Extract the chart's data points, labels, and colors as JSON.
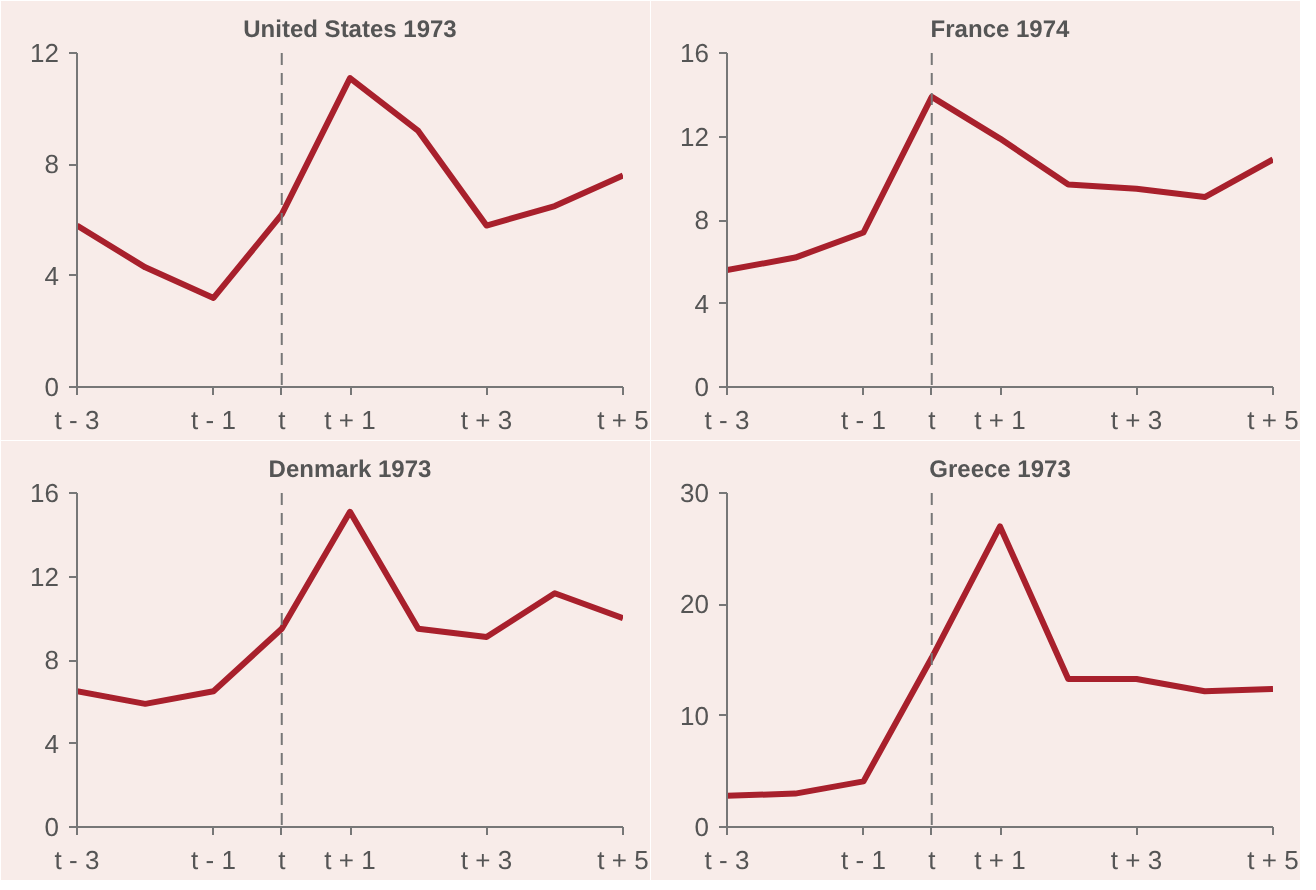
{
  "chart_data": [
    {
      "type": "line",
      "title": "United States 1973",
      "x": [
        -3,
        -2,
        -1,
        0,
        1,
        2,
        3,
        4,
        5
      ],
      "series": [
        {
          "color": "#a8202c",
          "values": [
            5.8,
            4.3,
            3.2,
            6.2,
            11.1,
            9.2,
            5.8,
            6.5,
            7.6
          ]
        }
      ],
      "xlim": [
        -3,
        5
      ],
      "xticks": [
        {
          "value": -3,
          "label": "t - 3"
        },
        {
          "value": -1,
          "label": "t - 1"
        },
        {
          "value": 0,
          "label": "t"
        },
        {
          "value": 1,
          "label": "t + 1"
        },
        {
          "value": 3,
          "label": "t + 3"
        },
        {
          "value": 5,
          "label": "t + 5"
        }
      ],
      "ylim": [
        0,
        12
      ],
      "yticks": [
        0,
        4,
        8,
        12
      ],
      "ref_lines": [
        {
          "axis": "x",
          "value": 0,
          "label": null,
          "color": "#777777",
          "line_style": "dashed"
        }
      ],
      "grid": false
    },
    {
      "type": "line",
      "title": "France 1974",
      "x": [
        -3,
        -2,
        -1,
        0,
        1,
        2,
        3,
        4,
        5
      ],
      "series": [
        {
          "color": "#a8202c",
          "values": [
            5.6,
            6.2,
            7.4,
            13.9,
            11.9,
            9.7,
            9.5,
            9.1,
            10.9
          ]
        }
      ],
      "xlim": [
        -3,
        5
      ],
      "xticks": [
        {
          "value": -3,
          "label": "t - 3"
        },
        {
          "value": -1,
          "label": "t - 1"
        },
        {
          "value": 0,
          "label": "t"
        },
        {
          "value": 1,
          "label": "t + 1"
        },
        {
          "value": 3,
          "label": "t + 3"
        },
        {
          "value": 5,
          "label": "t + 5"
        }
      ],
      "ylim": [
        0,
        16
      ],
      "yticks": [
        0,
        4,
        8,
        12,
        16
      ],
      "ref_lines": [
        {
          "axis": "x",
          "value": 0,
          "label": null,
          "color": "#777777",
          "line_style": "dashed"
        }
      ],
      "grid": false
    },
    {
      "type": "line",
      "title": "Denmark 1973",
      "x": [
        -3,
        -2,
        -1,
        0,
        1,
        2,
        3,
        4,
        5
      ],
      "series": [
        {
          "color": "#a8202c",
          "values": [
            6.5,
            5.9,
            6.5,
            9.5,
            15.1,
            9.5,
            9.1,
            11.2,
            10.0
          ]
        }
      ],
      "xlim": [
        -3,
        5
      ],
      "xticks": [
        {
          "value": -3,
          "label": "t - 3"
        },
        {
          "value": -1,
          "label": "t - 1"
        },
        {
          "value": 0,
          "label": "t"
        },
        {
          "value": 1,
          "label": "t + 1"
        },
        {
          "value": 3,
          "label": "t + 3"
        },
        {
          "value": 5,
          "label": "t + 5"
        }
      ],
      "ylim": [
        0,
        16
      ],
      "yticks": [
        0,
        4,
        8,
        12,
        16
      ],
      "ref_lines": [
        {
          "axis": "x",
          "value": 0,
          "label": null,
          "color": "#777777",
          "line_style": "dashed"
        }
      ],
      "grid": false
    },
    {
      "type": "line",
      "title": "Greece 1973",
      "x": [
        -3,
        -2,
        -1,
        0,
        1,
        2,
        3,
        4,
        5
      ],
      "series": [
        {
          "color": "#a8202c",
          "values": [
            2.8,
            3.0,
            4.1,
            15.2,
            27.0,
            13.3,
            13.3,
            12.2,
            12.4
          ]
        }
      ],
      "xlim": [
        -3,
        5
      ],
      "xticks": [
        {
          "value": -3,
          "label": "t - 3"
        },
        {
          "value": -1,
          "label": "t - 1"
        },
        {
          "value": 0,
          "label": "t"
        },
        {
          "value": 1,
          "label": "t + 1"
        },
        {
          "value": 3,
          "label": "t + 3"
        },
        {
          "value": 5,
          "label": "t + 5"
        }
      ],
      "ylim": [
        0,
        30
      ],
      "yticks": [
        0,
        10,
        20,
        30
      ],
      "ref_lines": [
        {
          "axis": "x",
          "value": 0,
          "label": null,
          "color": "#777777",
          "line_style": "dashed"
        }
      ],
      "grid": false
    }
  ]
}
